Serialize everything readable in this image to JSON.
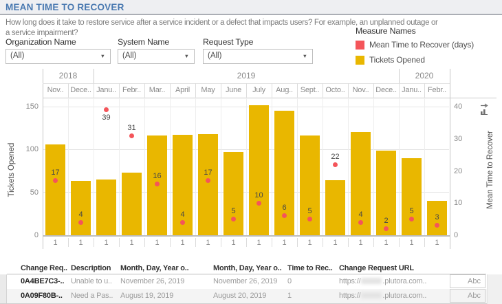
{
  "header": {
    "title": "MEAN TIME TO RECOVER",
    "description_lines": [
      "How long does it take to restore service after a service incident or a defect that impacts users? For example, an unplanned outage or",
      "a service impairment?"
    ]
  },
  "filters": [
    {
      "label": "Organization Name",
      "value": "(All)"
    },
    {
      "label": "System Name",
      "value": "(All)"
    },
    {
      "label": "Request Type",
      "value": "(All)"
    }
  ],
  "legend": {
    "title": "Measure Names",
    "items": [
      {
        "label": "Mean Time to Recover (days)",
        "color": "#f4555a"
      },
      {
        "label": "Tickets Opened",
        "color": "#e9b700"
      }
    ]
  },
  "chart_data": {
    "type": "bar",
    "title": "",
    "ylabel_left": "Tickets Opened",
    "ylabel_right": "Mean Time to Recover",
    "ylim_left": [
      0,
      150
    ],
    "ylim_right": [
      0,
      40
    ],
    "yticks_left": [
      0,
      50,
      100,
      150
    ],
    "yticks_right": [
      0,
      10,
      20,
      30,
      40
    ],
    "grid": true,
    "legend_position": "top-right",
    "year_groups": [
      {
        "label": "2018",
        "span": 2
      },
      {
        "label": "2019",
        "span": 12
      },
      {
        "label": "2020",
        "span": 2
      }
    ],
    "categories": [
      "Nov..",
      "Dece..",
      "Janu..",
      "Febr..",
      "Mar..",
      "April",
      "May",
      "June",
      "July",
      "Aug..",
      "Sept..",
      "Octo..",
      "Nov..",
      "Dece..",
      "Janu..",
      "Febr.."
    ],
    "day_of_month_labels": [
      "1",
      "1",
      "1",
      "1",
      "1",
      "1",
      "1",
      "1",
      "1",
      "1",
      "1",
      "1",
      "1",
      "1",
      "1",
      "1"
    ],
    "series": [
      {
        "name": "Tickets Opened",
        "type": "bar",
        "axis": "left",
        "color": "#e9b700",
        "values": [
          106,
          63,
          65,
          73,
          116,
          117,
          118,
          97,
          152,
          145,
          116,
          64,
          120,
          99,
          90,
          40
        ]
      },
      {
        "name": "Mean Time to Recover (days)",
        "type": "point",
        "axis": "right",
        "color": "#f4555a",
        "values": [
          17,
          4,
          39,
          31,
          16,
          4,
          17,
          5,
          10,
          6,
          5,
          22,
          4,
          2,
          5,
          3
        ],
        "label_below_index": 2
      }
    ]
  },
  "table": {
    "columns": [
      "Change Req..",
      "Description",
      "Month, Day, Year o..",
      "Month, Day, Year o..",
      "Time to Rec..",
      "Change Request URL"
    ],
    "rows": [
      {
        "change_request": "0A4BE7C3-..",
        "description": "Unable to u..",
        "date1": "November 26, 2019",
        "date2": "November 26, 2019",
        "time_to_recover": "0",
        "url_prefix": "https://",
        "url_suffix": ".plutora.com..",
        "url_redacted": true,
        "type_cell": "Abc"
      },
      {
        "change_request": "0A09F80B-..",
        "description": "Need a Pas..",
        "date1": "August 19, 2019",
        "date2": "August 20, 2019",
        "time_to_recover": "1",
        "url_prefix": "https://",
        "url_suffix": ".plutora.com..",
        "url_redacted": true,
        "type_cell": "Abc"
      }
    ]
  }
}
